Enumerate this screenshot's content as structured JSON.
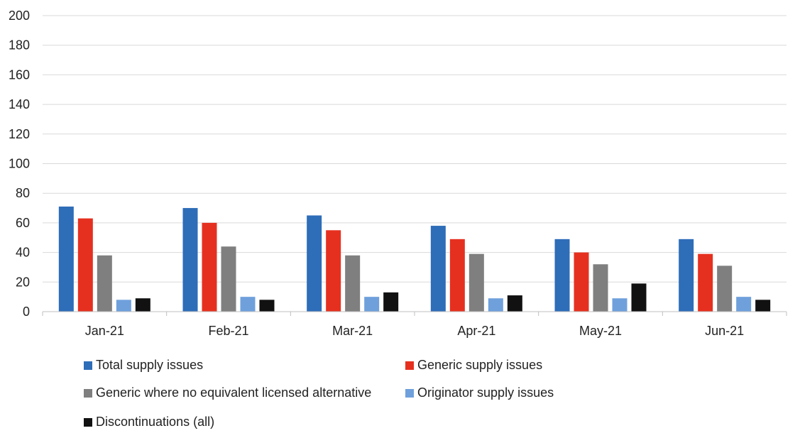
{
  "chart_data": {
    "type": "bar",
    "title": "",
    "xlabel": "",
    "ylabel": "",
    "ylim": [
      0,
      200
    ],
    "yticks": [
      0,
      20,
      40,
      60,
      80,
      100,
      120,
      140,
      160,
      180,
      200
    ],
    "categories": [
      "Jan-21",
      "Feb-21",
      "Mar-21",
      "Apr-21",
      "May-21",
      "Jun-21"
    ],
    "grid": true,
    "legend_position": "bottom",
    "series": [
      {
        "name": "Total supply issues",
        "color": "#2E6DB8",
        "values": [
          71,
          70,
          65,
          58,
          49,
          49
        ]
      },
      {
        "name": "Generic supply issues",
        "color": "#E6301F",
        "values": [
          63,
          60,
          55,
          49,
          40,
          39
        ]
      },
      {
        "name": "Generic where no equivalent licensed alternative",
        "color": "#7F7F7F",
        "values": [
          38,
          44,
          38,
          39,
          32,
          31
        ]
      },
      {
        "name": "Originator supply issues",
        "color": "#6FA0DC",
        "values": [
          8,
          10,
          10,
          9,
          9,
          10
        ]
      },
      {
        "name": "Discontinuations (all)",
        "color": "#111111",
        "values": [
          9,
          8,
          13,
          11,
          19,
          8
        ]
      }
    ]
  }
}
